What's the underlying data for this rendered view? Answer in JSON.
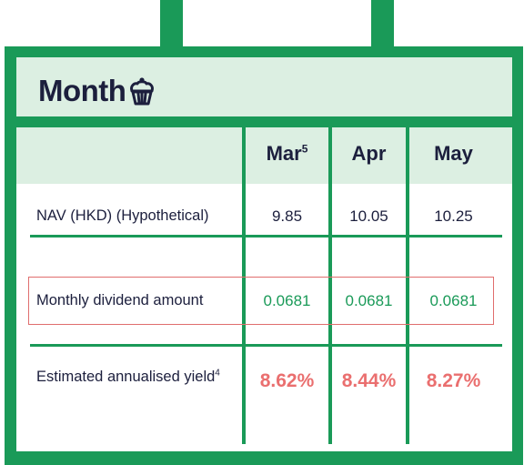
{
  "title": "Month",
  "title_icon": "cupcake-icon",
  "colors": {
    "green": "#1a9a58",
    "header_band": "#dcefe2",
    "navy": "#1c1f3d",
    "red": "#ea6f6f",
    "highlight_border": "#e06d6d"
  },
  "columns": [
    {
      "label": "Mar",
      "sup": "5"
    },
    {
      "label": "Apr",
      "sup": ""
    },
    {
      "label": "May",
      "sup": ""
    }
  ],
  "rows": [
    {
      "label": "NAV (HKD) (Hypothetical)",
      "sup": "",
      "values": [
        "9.85",
        "10.05",
        "10.25"
      ]
    },
    {
      "label": "Monthly dividend amount",
      "sup": "",
      "values": [
        "0.0681",
        "0.0681",
        "0.0681"
      ]
    },
    {
      "label": "Estimated annualised yield",
      "sup": "4",
      "values": [
        "8.62%",
        "8.44%",
        "8.27%"
      ]
    }
  ]
}
